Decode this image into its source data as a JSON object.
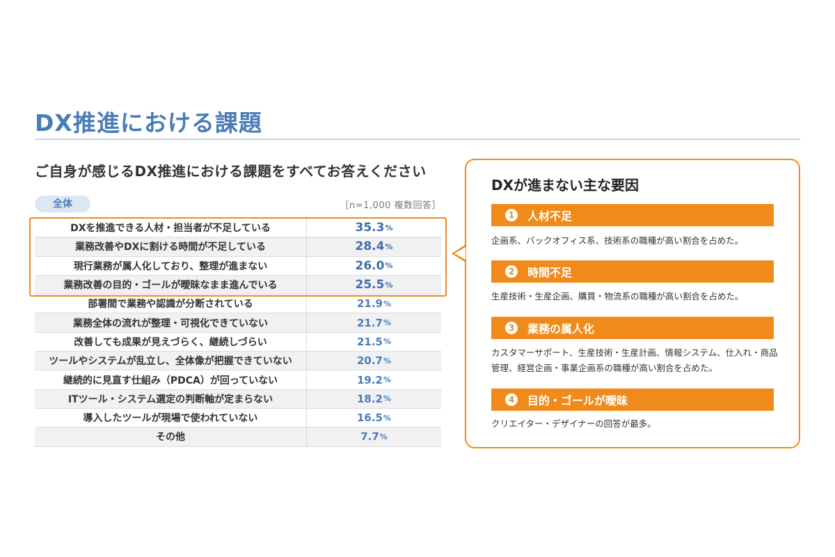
{
  "page": {
    "title": "DX推進における課題",
    "question": "ご自身が感じるDX推進における課題をすべてお答えください",
    "badge": "全体",
    "note": "［n=1,000 複数回答］"
  },
  "colors": {
    "accent_blue": "#4a7cb8",
    "accent_orange": "#f08a1a",
    "row_shade": "#f1f1f4"
  },
  "chart_data": {
    "type": "table",
    "title": "",
    "highlighted_top": 4,
    "rows": [
      {
        "label": "DXを推進できる人材・担当者が不足している",
        "value": 35.3,
        "value_text": "35.3",
        "unit": "%"
      },
      {
        "label": "業務改善やDXに割ける時間が不足している",
        "value": 28.4,
        "value_text": "28.4",
        "unit": "%"
      },
      {
        "label": "現行業務が属人化しており、整理が進まない",
        "value": 26.0,
        "value_text": "26.0",
        "unit": "%"
      },
      {
        "label": "業務改善の目的・ゴールが曖昧なまま進んでいる",
        "value": 25.5,
        "value_text": "25.5",
        "unit": "%"
      },
      {
        "label": "部署間で業務や認識が分断されている",
        "value": 21.9,
        "value_text": "21.9",
        "unit": "%"
      },
      {
        "label": "業務全体の流れが整理・可視化できていない",
        "value": 21.7,
        "value_text": "21.7",
        "unit": "%"
      },
      {
        "label": "改善しても成果が見えづらく、継続しづらい",
        "value": 21.5,
        "value_text": "21.5",
        "unit": "%"
      },
      {
        "label": "ツールやシステムが乱立し、全体像が把握できていない",
        "value": 20.7,
        "value_text": "20.7",
        "unit": "%"
      },
      {
        "label": "継続的に見直す仕組み（PDCA）が回っていない",
        "value": 19.2,
        "value_text": "19.2",
        "unit": "%"
      },
      {
        "label": "ITツール・システム選定の判断軸が定まらない",
        "value": 18.2,
        "value_text": "18.2",
        "unit": "%"
      },
      {
        "label": "導入したツールが現場で使われていない",
        "value": 16.5,
        "value_text": "16.5",
        "unit": "%"
      },
      {
        "label": "その他",
        "value": 7.7,
        "value_text": "7.7",
        "unit": "%"
      }
    ]
  },
  "callout": {
    "title": "DXが進まない主な要因",
    "factors": [
      {
        "num": "1",
        "name": "人材不足",
        "desc": "企画系、バックオフィス系、技術系の職種が高い割合を占めた。"
      },
      {
        "num": "2",
        "name": "時間不足",
        "desc": "生産技術・生産企画、購買・物流系の職種が高い割合を占めた。"
      },
      {
        "num": "3",
        "name": "業務の属人化",
        "desc": "カスタマーサポート、生産技術・生産計画、情報システム、仕入れ・商品管理、経営企画・事業企画系の職種が高い割合を占めた。"
      },
      {
        "num": "4",
        "name": "目的・ゴールが曖昧",
        "desc": "クリエイター・デザイナーの回答が最多。"
      }
    ]
  }
}
